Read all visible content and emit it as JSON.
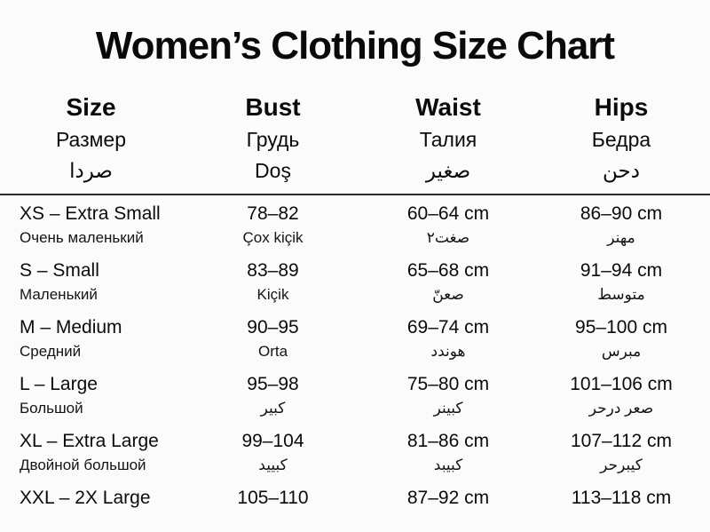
{
  "colors": {
    "background": "#fbfbfb",
    "text": "#0b0b0b",
    "divider": "#2b2b2b"
  },
  "chart_data": {
    "type": "table",
    "title": "Women’s Clothing Size Chart",
    "header": [
      {
        "line1": "Size",
        "line2": "Размер",
        "line3": "صردا"
      },
      {
        "line1": "Bust",
        "line2": "Грудь",
        "line3": "Doş"
      },
      {
        "line1": "Waist",
        "line2": "Талия",
        "line3": "صغير"
      },
      {
        "line1": "Hips",
        "line2": "Бедра",
        "line3": "دحن"
      }
    ],
    "rows": [
      {
        "size": "XS – Extra Small",
        "size_sub": "Очень маленький",
        "bust": "78–82",
        "bust_sub": "Çox kiçik",
        "waist": "60–64 cm",
        "waist_sub": "صغت٢",
        "hips": "86–90 cm",
        "hips_sub": "مهنر"
      },
      {
        "size": "S – Small",
        "size_sub": "Маленький",
        "bust": "83–89",
        "bust_sub": "Kiçik",
        "waist": "65–68 cm",
        "waist_sub": "صعنّ",
        "hips": "91–94 cm",
        "hips_sub": "متوسط"
      },
      {
        "size": "M – Medium",
        "size_sub": "Средний",
        "bust": "90–95",
        "bust_sub": "Orta",
        "waist": "69–74 cm",
        "waist_sub": "هوندد",
        "hips": "95–100 cm",
        "hips_sub": "مبرس"
      },
      {
        "size": "L – Large",
        "size_sub": "Большой",
        "bust": "95–98",
        "bust_sub": "كبير",
        "waist": "75–80 cm",
        "waist_sub": "كبينر",
        "hips": "101–106 cm",
        "hips_sub": "صعر درحر"
      },
      {
        "size": "XL – Extra Large",
        "size_sub": "Двойной большой",
        "bust": "99–104",
        "bust_sub": "كبييد",
        "waist": "81–86 cm",
        "waist_sub": "كبيبد",
        "hips": "107–112 cm",
        "hips_sub": "كيبرحر"
      },
      {
        "size": "XXL – 2X Large",
        "size_sub": "",
        "bust": "105–110",
        "bust_sub": "",
        "waist": "87–92 cm",
        "waist_sub": "",
        "hips": "113–118 cm",
        "hips_sub": ""
      }
    ]
  }
}
